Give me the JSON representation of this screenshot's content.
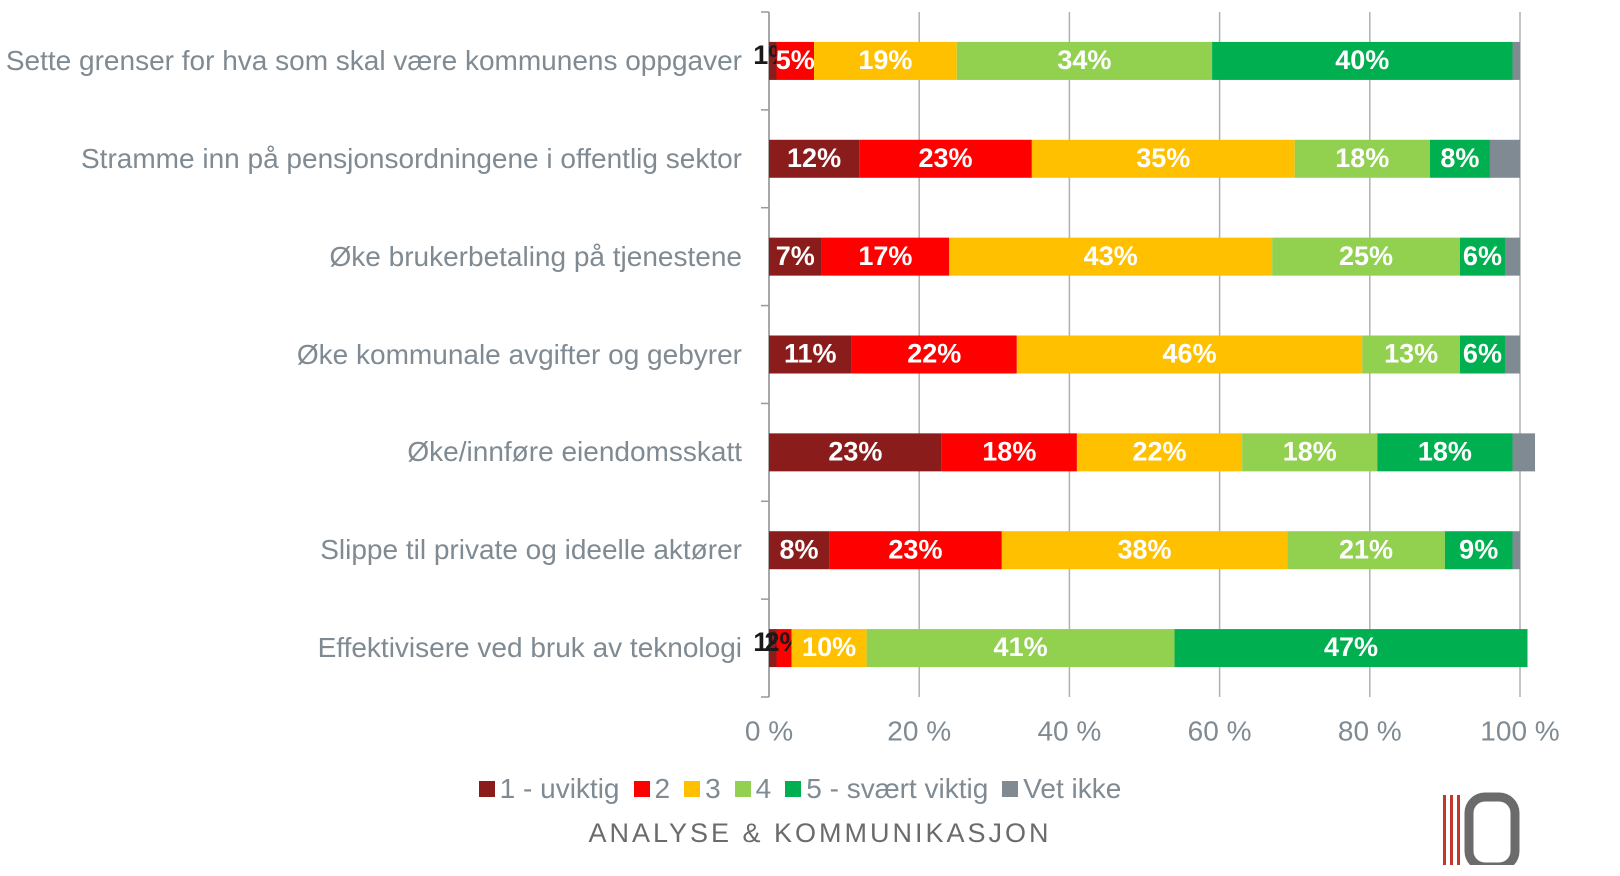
{
  "chart_data": {
    "type": "stacked_barh",
    "categories": [
      "Sette grenser for hva som skal være kommunens oppgaver",
      "Stramme inn på pensjonsordningene i offentlig sektor",
      "Øke brukerbetaling på tjenestene",
      "Øke kommunale avgifter og gebyrer",
      "Øke/innføre eiendomsskatt",
      "Slippe til private og ideelle aktører",
      "Effektivisere ved bruk av teknologi"
    ],
    "series": [
      {
        "name": "1 - uviktig",
        "color": "#8b1c1c",
        "values": [
          1,
          12,
          7,
          11,
          23,
          8,
          1
        ],
        "value_labels": [
          "1%",
          "12%",
          "7%",
          "11%",
          "23%",
          "8%",
          "1%"
        ]
      },
      {
        "name": "2",
        "color": "#ff0000",
        "values": [
          5,
          23,
          17,
          22,
          18,
          23,
          2
        ],
        "value_labels": [
          "5%",
          "23%",
          "17%",
          "22%",
          "18%",
          "23%",
          "2%"
        ]
      },
      {
        "name": "3",
        "color": "#ffc000",
        "values": [
          19,
          35,
          43,
          46,
          22,
          38,
          10
        ],
        "value_labels": [
          "19%",
          "35%",
          "43%",
          "46%",
          "22%",
          "38%",
          "10%"
        ]
      },
      {
        "name": "4",
        "color": "#92d050",
        "values": [
          34,
          18,
          25,
          13,
          18,
          21,
          41
        ],
        "value_labels": [
          "34%",
          "18%",
          "25%",
          "13%",
          "18%",
          "21%",
          "41%"
        ]
      },
      {
        "name": "5 - svært viktig",
        "color": "#00b050",
        "values": [
          40,
          8,
          6,
          6,
          18,
          9,
          47
        ],
        "value_labels": [
          "40%",
          "8%",
          "6%",
          "6%",
          "18%",
          "9%",
          "47%"
        ]
      },
      {
        "name": "Vet ikke",
        "color": "#7f8a92",
        "values": [
          1,
          4,
          2,
          2,
          3,
          1,
          0
        ],
        "value_labels": [
          null,
          null,
          null,
          null,
          null,
          null,
          null
        ]
      }
    ],
    "xlim": [
      0,
      100
    ],
    "xticks": [
      {
        "value": 0,
        "label": "0 %"
      },
      {
        "value": 20,
        "label": "20 %"
      },
      {
        "value": 40,
        "label": "40 %"
      },
      {
        "value": 60,
        "label": "60 %"
      },
      {
        "value": 80,
        "label": "80 %"
      },
      {
        "value": 100,
        "label": "100 %"
      }
    ],
    "grid": true,
    "legend": "bottom",
    "footer": "ANALYSE & KOMMUNIKASJON"
  }
}
